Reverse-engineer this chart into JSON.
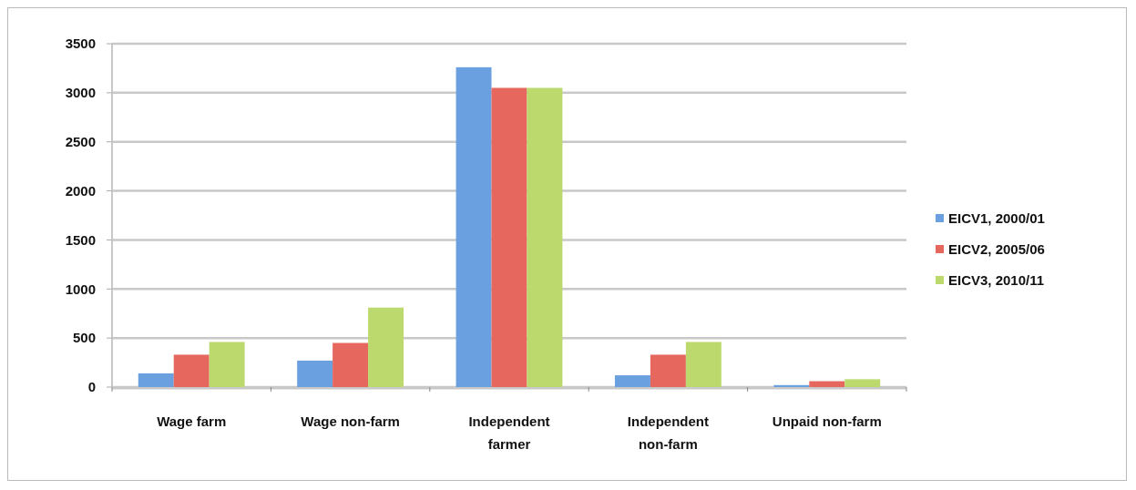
{
  "chart_data": {
    "type": "bar",
    "categories": [
      "Wage farm",
      "Wage non-farm",
      "Independent farmer",
      "Independent non-farm",
      "Unpaid non-farm"
    ],
    "series": [
      {
        "name": "EICV1, 2000/01",
        "color": "#6a9fe0",
        "values": [
          140,
          270,
          3260,
          120,
          20
        ]
      },
      {
        "name": "EICV2, 2005/06",
        "color": "#e5675d",
        "values": [
          330,
          450,
          3050,
          330,
          60
        ]
      },
      {
        "name": "EICV3, 2010/11",
        "color": "#bcd96e",
        "values": [
          460,
          810,
          3050,
          460,
          80
        ]
      }
    ],
    "ylim": [
      0,
      3500
    ],
    "yticks": [
      0,
      500,
      1000,
      1500,
      2000,
      2500,
      3000,
      3500
    ],
    "grid": "y",
    "legend": "right"
  }
}
